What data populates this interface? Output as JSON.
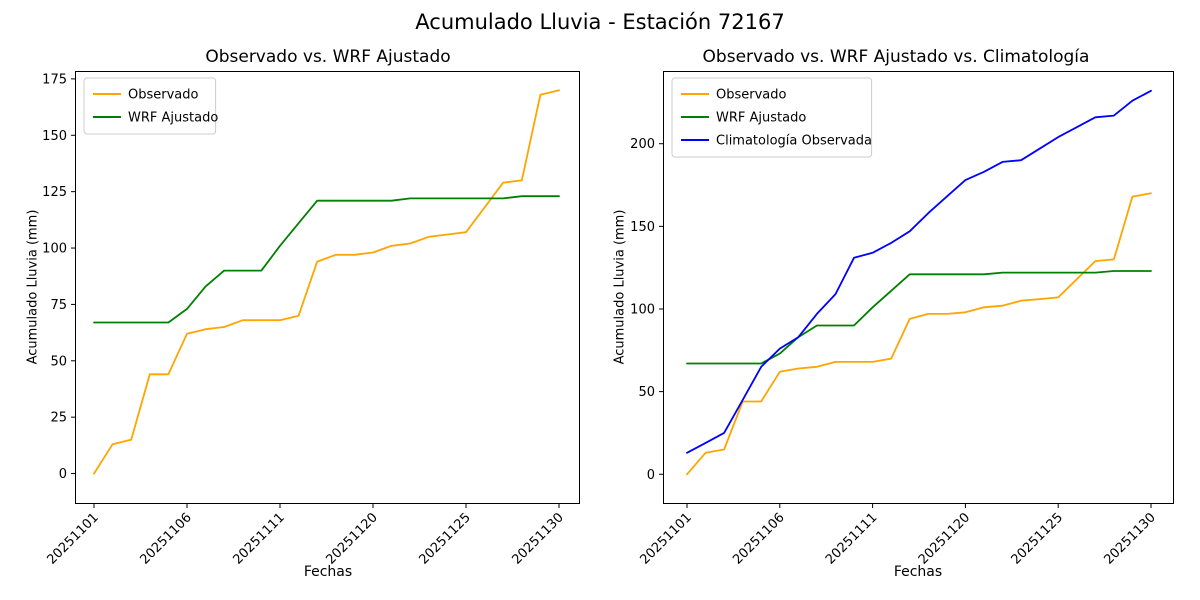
{
  "figure": {
    "title": "Acumulado Lluvia - Estación 72167"
  },
  "chart_data": [
    {
      "type": "line",
      "title": "Observado vs. WRF Ajustado",
      "xlabel": "Fechas",
      "ylabel": "Acumulado Lluvia (mm)",
      "x_tick_labels": [
        "20251101",
        "20251106",
        "20251111",
        "20251120",
        "20251125",
        "20251130"
      ],
      "x_tick_indices": [
        0,
        5,
        10,
        15,
        20,
        25
      ],
      "n_points": 26,
      "yticks": [
        0,
        25,
        50,
        75,
        100,
        125,
        150,
        175
      ],
      "ylim": [
        -13.5,
        178.5
      ],
      "grid": false,
      "legend_position": "upper-left",
      "series": [
        {
          "name": "Observado",
          "color": "#FFA500",
          "values": [
            0,
            13,
            15,
            44,
            44,
            62,
            64,
            65,
            68,
            68,
            68,
            70,
            94,
            97,
            97,
            98,
            101,
            102,
            105,
            106,
            107,
            118,
            129,
            130,
            168,
            170
          ]
        },
        {
          "name": "WRF Ajustado",
          "color": "#008000",
          "values": [
            67,
            67,
            67,
            67,
            67,
            73,
            83,
            90,
            90,
            90,
            101,
            111,
            121,
            121,
            121,
            121,
            121,
            122,
            122,
            122,
            122,
            122,
            122,
            123,
            123,
            123
          ]
        }
      ]
    },
    {
      "type": "line",
      "title": "Observado vs. WRF Ajustado vs. Climatología",
      "xlabel": "Fechas",
      "ylabel": "Acumulado Lluvia (mm)",
      "x_tick_labels": [
        "20251101",
        "20251106",
        "20251111",
        "20251120",
        "20251125",
        "20251130"
      ],
      "x_tick_indices": [
        0,
        5,
        10,
        15,
        20,
        25
      ],
      "n_points": 26,
      "yticks": [
        0,
        50,
        100,
        150,
        200
      ],
      "ylim": [
        -18,
        244
      ],
      "grid": false,
      "legend_position": "upper-left",
      "series": [
        {
          "name": "Observado",
          "color": "#FFA500",
          "values": [
            0,
            13,
            15,
            44,
            44,
            62,
            64,
            65,
            68,
            68,
            68,
            70,
            94,
            97,
            97,
            98,
            101,
            102,
            105,
            106,
            107,
            118,
            129,
            130,
            168,
            170
          ]
        },
        {
          "name": "WRF Ajustado",
          "color": "#008000",
          "values": [
            67,
            67,
            67,
            67,
            67,
            73,
            83,
            90,
            90,
            90,
            101,
            111,
            121,
            121,
            121,
            121,
            121,
            122,
            122,
            122,
            122,
            122,
            122,
            123,
            123,
            123
          ]
        },
        {
          "name": "Climatología Observada",
          "color": "#0000FF",
          "values": [
            13,
            19,
            25,
            45,
            65,
            76,
            83,
            97,
            109,
            131,
            134,
            140,
            147,
            158,
            168,
            178,
            183,
            189,
            190,
            197,
            204,
            210,
            216,
            217,
            226,
            232
          ]
        }
      ]
    }
  ]
}
